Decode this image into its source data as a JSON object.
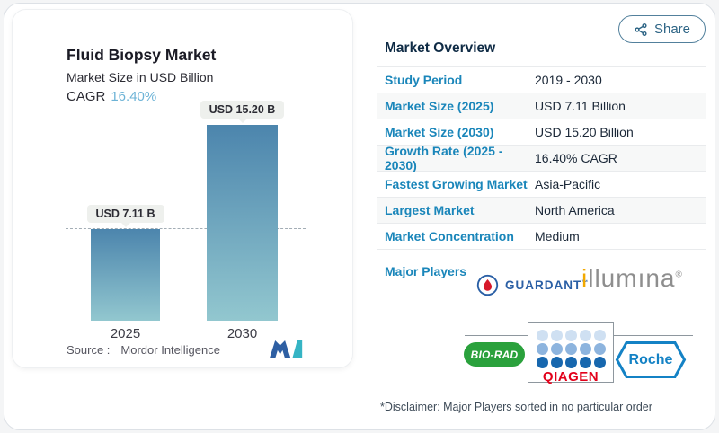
{
  "colors": {
    "accent_label_blue": "#1a86ba",
    "cagr_blue": "#6db3d6",
    "heading_navy": "#0f2b45",
    "bar_gradient_top": "#4c85ad",
    "bar_gradient_bottom": "#92c7cf",
    "guardant_blue": "#2a5fa5",
    "illumina_gray": "#8e8e8e",
    "illumina_orange": "#f2a900",
    "biorad_green": "#2aa13c",
    "qiagen_red": "#e2001a",
    "roche_blue": "#1482c5"
  },
  "chart": {
    "title": "Fluid Biopsy Market",
    "subtitle": "Market Size in USD Billion",
    "cagr_label": "CAGR",
    "cagr_value": "16.40%",
    "source_label": "Source :",
    "source_value": "Mordor Intelligence"
  },
  "chart_data": {
    "type": "bar",
    "title": "Fluid Biopsy Market",
    "subtitle": "Market Size in USD Billion",
    "cagr": "16.40%",
    "categories": [
      "2025",
      "2030"
    ],
    "values": [
      7.11,
      15.2
    ],
    "bar_labels": [
      "USD 7.11 B",
      "USD 15.20 B"
    ],
    "ylim": [
      0,
      15.2
    ],
    "annotations": [
      "horizontal dashed reference line at 7.11 (2025 level)"
    ],
    "legend": "none",
    "grid": "off"
  },
  "share": {
    "label": "Share"
  },
  "overview": {
    "title": "Market Overview",
    "rows": [
      {
        "label": "Study Period",
        "value": "2019 - 2030"
      },
      {
        "label": "Market Size (2025)",
        "value": "USD 7.11 Billion"
      },
      {
        "label": "Market Size (2030)",
        "value": "USD 15.20 Billion"
      },
      {
        "label": "Growth Rate (2025 - 2030)",
        "value": "16.40% CAGR"
      },
      {
        "label": "Fastest Growing Market",
        "value": "Asia-Pacific"
      },
      {
        "label": "Largest Market",
        "value": "North America"
      },
      {
        "label": "Market Concentration",
        "value": "Medium"
      }
    ],
    "major_players_label": "Major Players"
  },
  "players": {
    "guardant": "GUARDANT",
    "guardant_tm": "™",
    "illumina_first": "i",
    "illumina_rest": "llumına",
    "illumina_reg": "®",
    "biorad": "BIO-RAD",
    "qiagen": "QIAGEN",
    "qiagen_dot_rows": [
      "#cfe0f2",
      "#8db4de",
      "#1767ae"
    ],
    "roche": "Roche"
  },
  "disclaimer": "*Disclaimer: Major Players sorted in no particular order"
}
